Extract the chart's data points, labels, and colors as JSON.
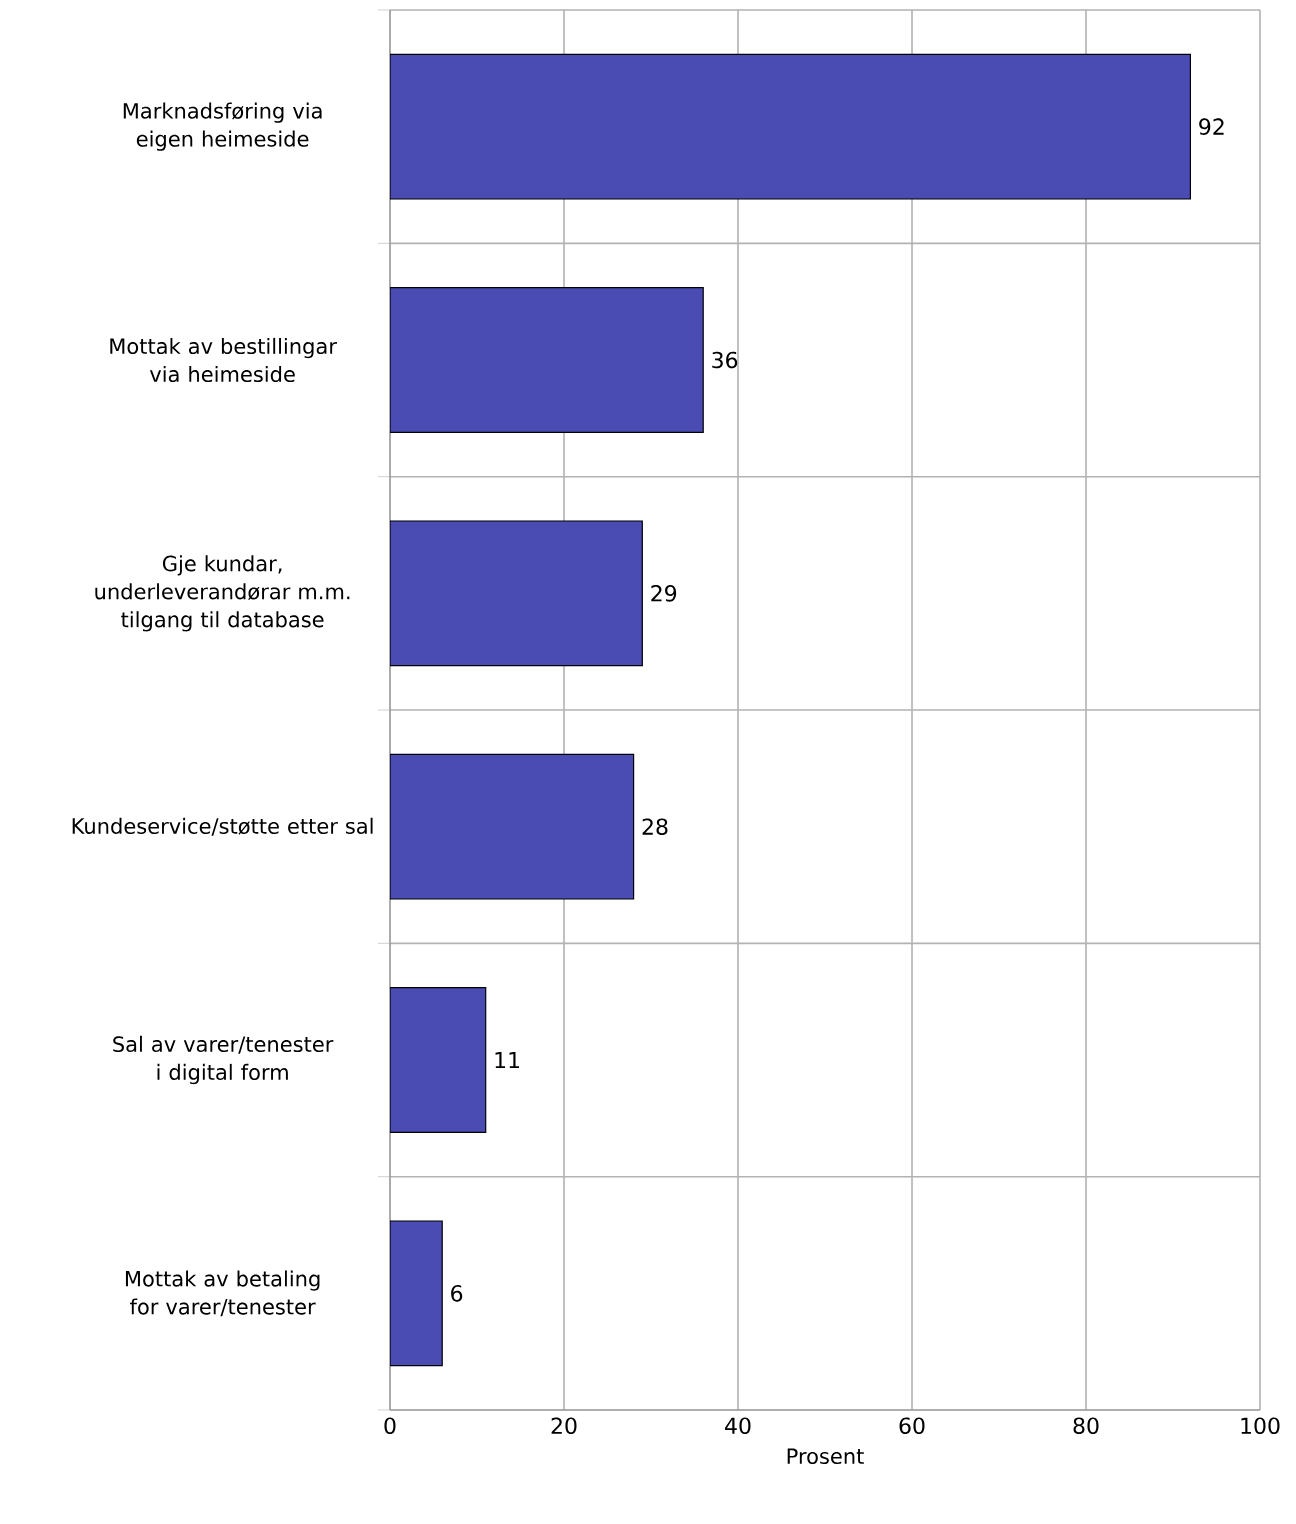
{
  "chart_data": {
    "type": "bar",
    "orientation": "horizontal",
    "categories": [
      "Marknadsføring via eigen heimeside",
      "Mottak av bestillingar via heimeside",
      "Gje kundar, underleverandørar m.m. tilgang til database",
      "Kundeservice/støtte etter sal",
      "Sal av varer/tenester i digital form",
      "Mottak av betaling for varer/tenester"
    ],
    "values": [
      92,
      36,
      29,
      28,
      11,
      6
    ],
    "color": "#4b4bb4",
    "xlabel": "Prosent",
    "xlim": [
      0,
      100
    ],
    "xticks": [
      0,
      20,
      40,
      60,
      80,
      100
    ],
    "grid": true,
    "data_labels": true
  }
}
